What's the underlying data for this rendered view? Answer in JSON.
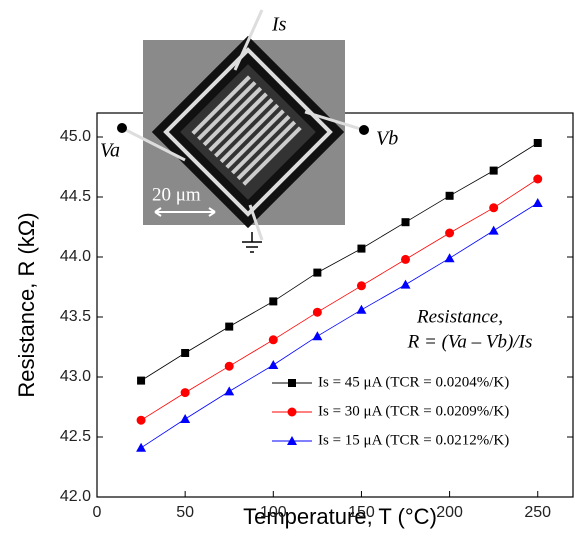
{
  "chart_data": {
    "type": "line",
    "x_label": "Temperature, T (°C)",
    "y_label": "Resistance, R (kΩ)",
    "annotations": [
      "Resistance,",
      "R = (Va – Vb)/Is"
    ],
    "inset_labels": [
      "Is",
      "Va",
      "Vb",
      "20 μm"
    ],
    "x": [
      25,
      50,
      75,
      100,
      125,
      150,
      175,
      200,
      225,
      250
    ],
    "series": [
      {
        "name": "Is = 45 μA (TCR = 0.0204%/K)",
        "color": "#000000",
        "marker": "square",
        "values": [
          42.97,
          43.2,
          43.42,
          43.63,
          43.87,
          44.07,
          44.29,
          44.51,
          44.72,
          44.95
        ]
      },
      {
        "name": "Is = 30 μA (TCR = 0.0209%/K)",
        "color": "#ff0000",
        "marker": "circle",
        "values": [
          42.64,
          42.87,
          43.09,
          43.31,
          43.54,
          43.76,
          43.98,
          44.2,
          44.41,
          44.65
        ]
      },
      {
        "name": "Is = 15 μA (TCR = 0.0212%/K)",
        "color": "#0000ff",
        "marker": "triangle",
        "values": [
          42.41,
          42.65,
          42.88,
          43.1,
          43.34,
          43.56,
          43.77,
          43.99,
          44.22,
          44.45
        ]
      }
    ],
    "xlim": [
      0,
      270
    ],
    "xticks": [
      0,
      50,
      100,
      150,
      200,
      250
    ],
    "ylim": [
      42.0,
      45.2
    ],
    "yticks": [
      {
        "value": 42,
        "label": "42.0"
      },
      {
        "value": 42.5,
        "label": "42.5"
      },
      {
        "value": 43,
        "label": "43.0"
      },
      {
        "value": 43.5,
        "label": "43.5"
      },
      {
        "value": 44,
        "label": "44.0"
      },
      {
        "value": 44.5,
        "label": "44.5"
      },
      {
        "value": 45,
        "label": "45.0"
      }
    ],
    "grid": false
  }
}
